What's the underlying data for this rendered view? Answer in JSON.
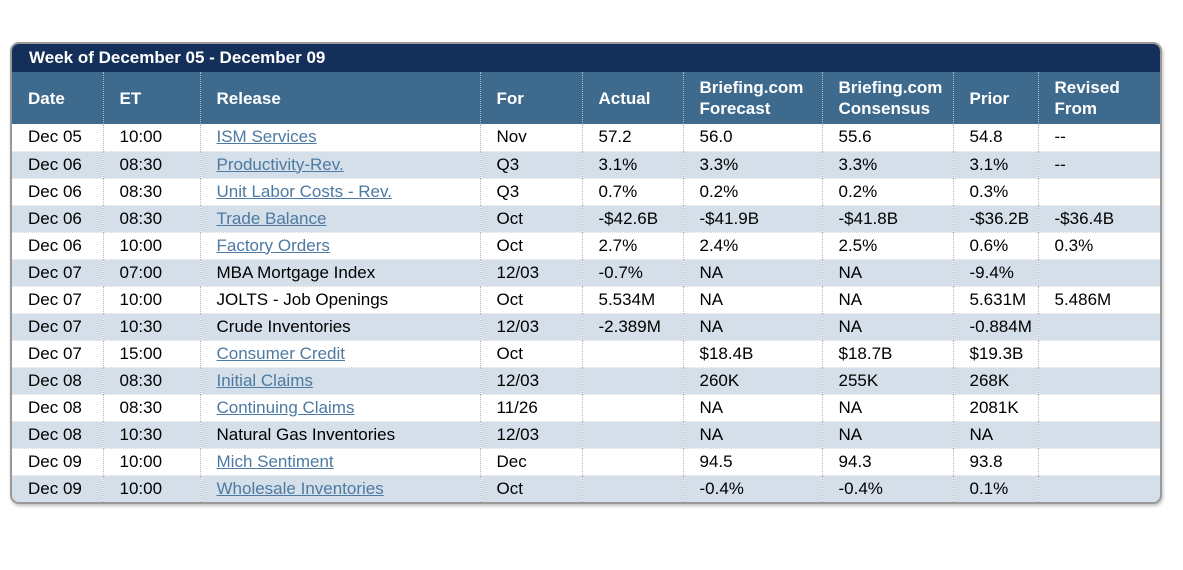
{
  "title_bar": {
    "text": "Week of December 05 - December 09"
  },
  "columns": [
    {
      "key": "date",
      "label": "Date"
    },
    {
      "key": "et",
      "label": "ET"
    },
    {
      "key": "release",
      "label": "Release"
    },
    {
      "key": "for",
      "label": "For"
    },
    {
      "key": "actual",
      "label": "Actual"
    },
    {
      "key": "forecast",
      "label": "Briefing.com Forecast"
    },
    {
      "key": "consensus",
      "label": "Briefing.com Consensus"
    },
    {
      "key": "prior",
      "label": "Prior"
    },
    {
      "key": "revised",
      "label": "Revised From"
    }
  ],
  "rows": [
    {
      "date": "Dec 05",
      "et": "10:00",
      "release": "ISM Services",
      "release_linked": true,
      "for": "Nov",
      "actual": "57.2",
      "forecast": "56.0",
      "consensus": "55.6",
      "prior": "54.8",
      "revised": "--"
    },
    {
      "date": "Dec 06",
      "et": "08:30",
      "release": "Productivity-Rev.",
      "release_linked": true,
      "for": "Q3",
      "actual": "3.1%",
      "forecast": "3.3%",
      "consensus": "3.3%",
      "prior": "3.1%",
      "revised": "--"
    },
    {
      "date": "Dec 06",
      "et": "08:30",
      "release": "Unit Labor Costs - Rev.",
      "release_linked": true,
      "for": "Q3",
      "actual": "0.7%",
      "forecast": "0.2%",
      "consensus": "0.2%",
      "prior": "0.3%",
      "revised": ""
    },
    {
      "date": "Dec 06",
      "et": "08:30",
      "release": "Trade Balance",
      "release_linked": true,
      "for": "Oct",
      "actual": "-$42.6B",
      "forecast": "-$41.9B",
      "consensus": "-$41.8B",
      "prior": "-$36.2B",
      "revised": "-$36.4B"
    },
    {
      "date": "Dec 06",
      "et": "10:00",
      "release": "Factory Orders",
      "release_linked": true,
      "for": "Oct",
      "actual": "2.7%",
      "forecast": "2.4%",
      "consensus": "2.5%",
      "prior": "0.6%",
      "revised": "0.3%"
    },
    {
      "date": "Dec 07",
      "et": "07:00",
      "release": "MBA Mortgage Index",
      "release_linked": false,
      "for": "12/03",
      "actual": "-0.7%",
      "forecast": "NA",
      "consensus": "NA",
      "prior": "-9.4%",
      "revised": ""
    },
    {
      "date": "Dec 07",
      "et": "10:00",
      "release": "JOLTS - Job Openings",
      "release_linked": false,
      "for": "Oct",
      "actual": "5.534M",
      "forecast": "NA",
      "consensus": "NA",
      "prior": "5.631M",
      "revised": "5.486M"
    },
    {
      "date": "Dec 07",
      "et": "10:30",
      "release": "Crude Inventories",
      "release_linked": false,
      "for": "12/03",
      "actual": "-2.389M",
      "forecast": "NA",
      "consensus": "NA",
      "prior": "-0.884M",
      "revised": ""
    },
    {
      "date": "Dec 07",
      "et": "15:00",
      "release": "Consumer Credit",
      "release_linked": true,
      "for": "Oct",
      "actual": "",
      "forecast": "$18.4B",
      "consensus": "$18.7B",
      "prior": "$19.3B",
      "revised": ""
    },
    {
      "date": "Dec 08",
      "et": "08:30",
      "release": "Initial Claims",
      "release_linked": true,
      "for": "12/03",
      "actual": "",
      "forecast": "260K",
      "consensus": "255K",
      "prior": "268K",
      "revised": ""
    },
    {
      "date": "Dec 08",
      "et": "08:30",
      "release": "Continuing Claims",
      "release_linked": true,
      "for": "11/26",
      "actual": "",
      "forecast": "NA",
      "consensus": "NA",
      "prior": "2081K",
      "revised": ""
    },
    {
      "date": "Dec 08",
      "et": "10:30",
      "release": "Natural Gas Inventories",
      "release_linked": false,
      "for": "12/03",
      "actual": "",
      "forecast": "NA",
      "consensus": "NA",
      "prior": "NA",
      "revised": ""
    },
    {
      "date": "Dec 09",
      "et": "10:00",
      "release": "Mich Sentiment",
      "release_linked": true,
      "for": "Dec",
      "actual": "",
      "forecast": "94.5",
      "consensus": "94.3",
      "prior": "93.8",
      "revised": ""
    },
    {
      "date": "Dec 09",
      "et": "10:00",
      "release": "Wholesale Inventories",
      "release_linked": true,
      "for": "Oct",
      "actual": "",
      "forecast": "-0.4%",
      "consensus": "-0.4%",
      "prior": "0.1%",
      "revised": ""
    }
  ],
  "colors": {
    "titlebar_bg": "#14305a",
    "header_bg": "#3e6a8e",
    "stripe_bg": "#d4dfe9",
    "link": "#4d7aa2",
    "border": "#999999"
  }
}
